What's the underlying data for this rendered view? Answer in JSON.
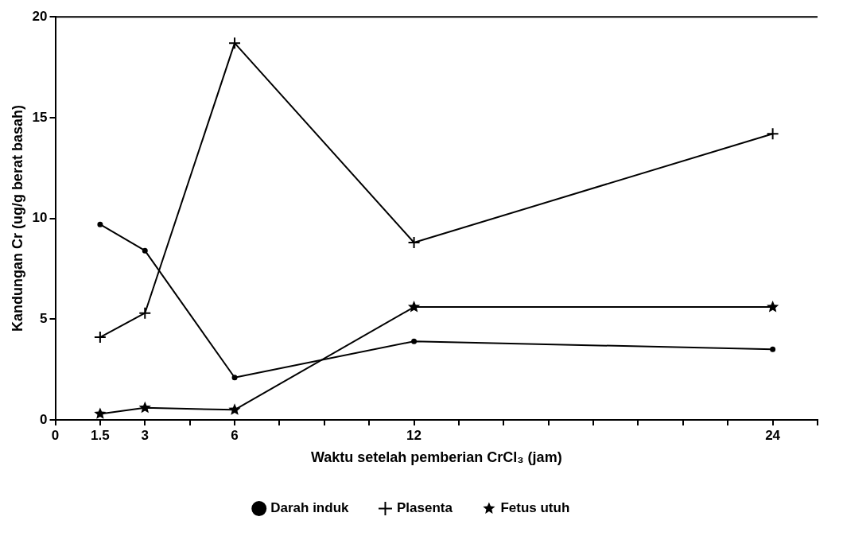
{
  "chart_data": {
    "type": "line",
    "xlabel": "Waktu setelah pemberian CrCl₃ (jam)",
    "ylabel": "Kandungan Cr (ug/g berat basah)",
    "x": [
      1.5,
      3,
      6,
      12,
      24
    ],
    "xlim": [
      0,
      25.5
    ],
    "xticks": [
      0,
      1.5,
      3,
      {
        "value": 4.5,
        "label": null
      },
      6,
      {
        "value": 7.5,
        "label": null
      },
      {
        "value": 9,
        "label": null
      },
      {
        "value": 10.5,
        "label": null
      },
      12,
      {
        "value": 13.5,
        "label": null
      },
      {
        "value": 15,
        "label": null
      },
      {
        "value": 16.5,
        "label": null
      },
      {
        "value": 18,
        "label": null
      },
      {
        "value": 19.5,
        "label": null
      },
      {
        "value": 21,
        "label": null
      },
      {
        "value": 22.5,
        "label": null
      },
      24,
      {
        "value": 25.5,
        "label": null
      }
    ],
    "ylim": [
      0,
      20
    ],
    "yticks": [
      0,
      5,
      10,
      15,
      20
    ],
    "grid": false,
    "legend": "bottom",
    "line_style": "solid",
    "series": [
      {
        "name": "Darah induk",
        "color": "#000000",
        "marker": "circle",
        "values": [
          9.7,
          8.4,
          2.1,
          3.9,
          3.5
        ]
      },
      {
        "name": "Plasenta",
        "color": "#000000",
        "marker": "cross",
        "values": [
          4.1,
          5.3,
          18.7,
          8.8,
          14.2
        ]
      },
      {
        "name": "Fetus utuh",
        "color": "#000000",
        "marker": "star",
        "values": [
          0.3,
          0.6,
          0.5,
          5.6,
          5.6
        ]
      }
    ]
  }
}
